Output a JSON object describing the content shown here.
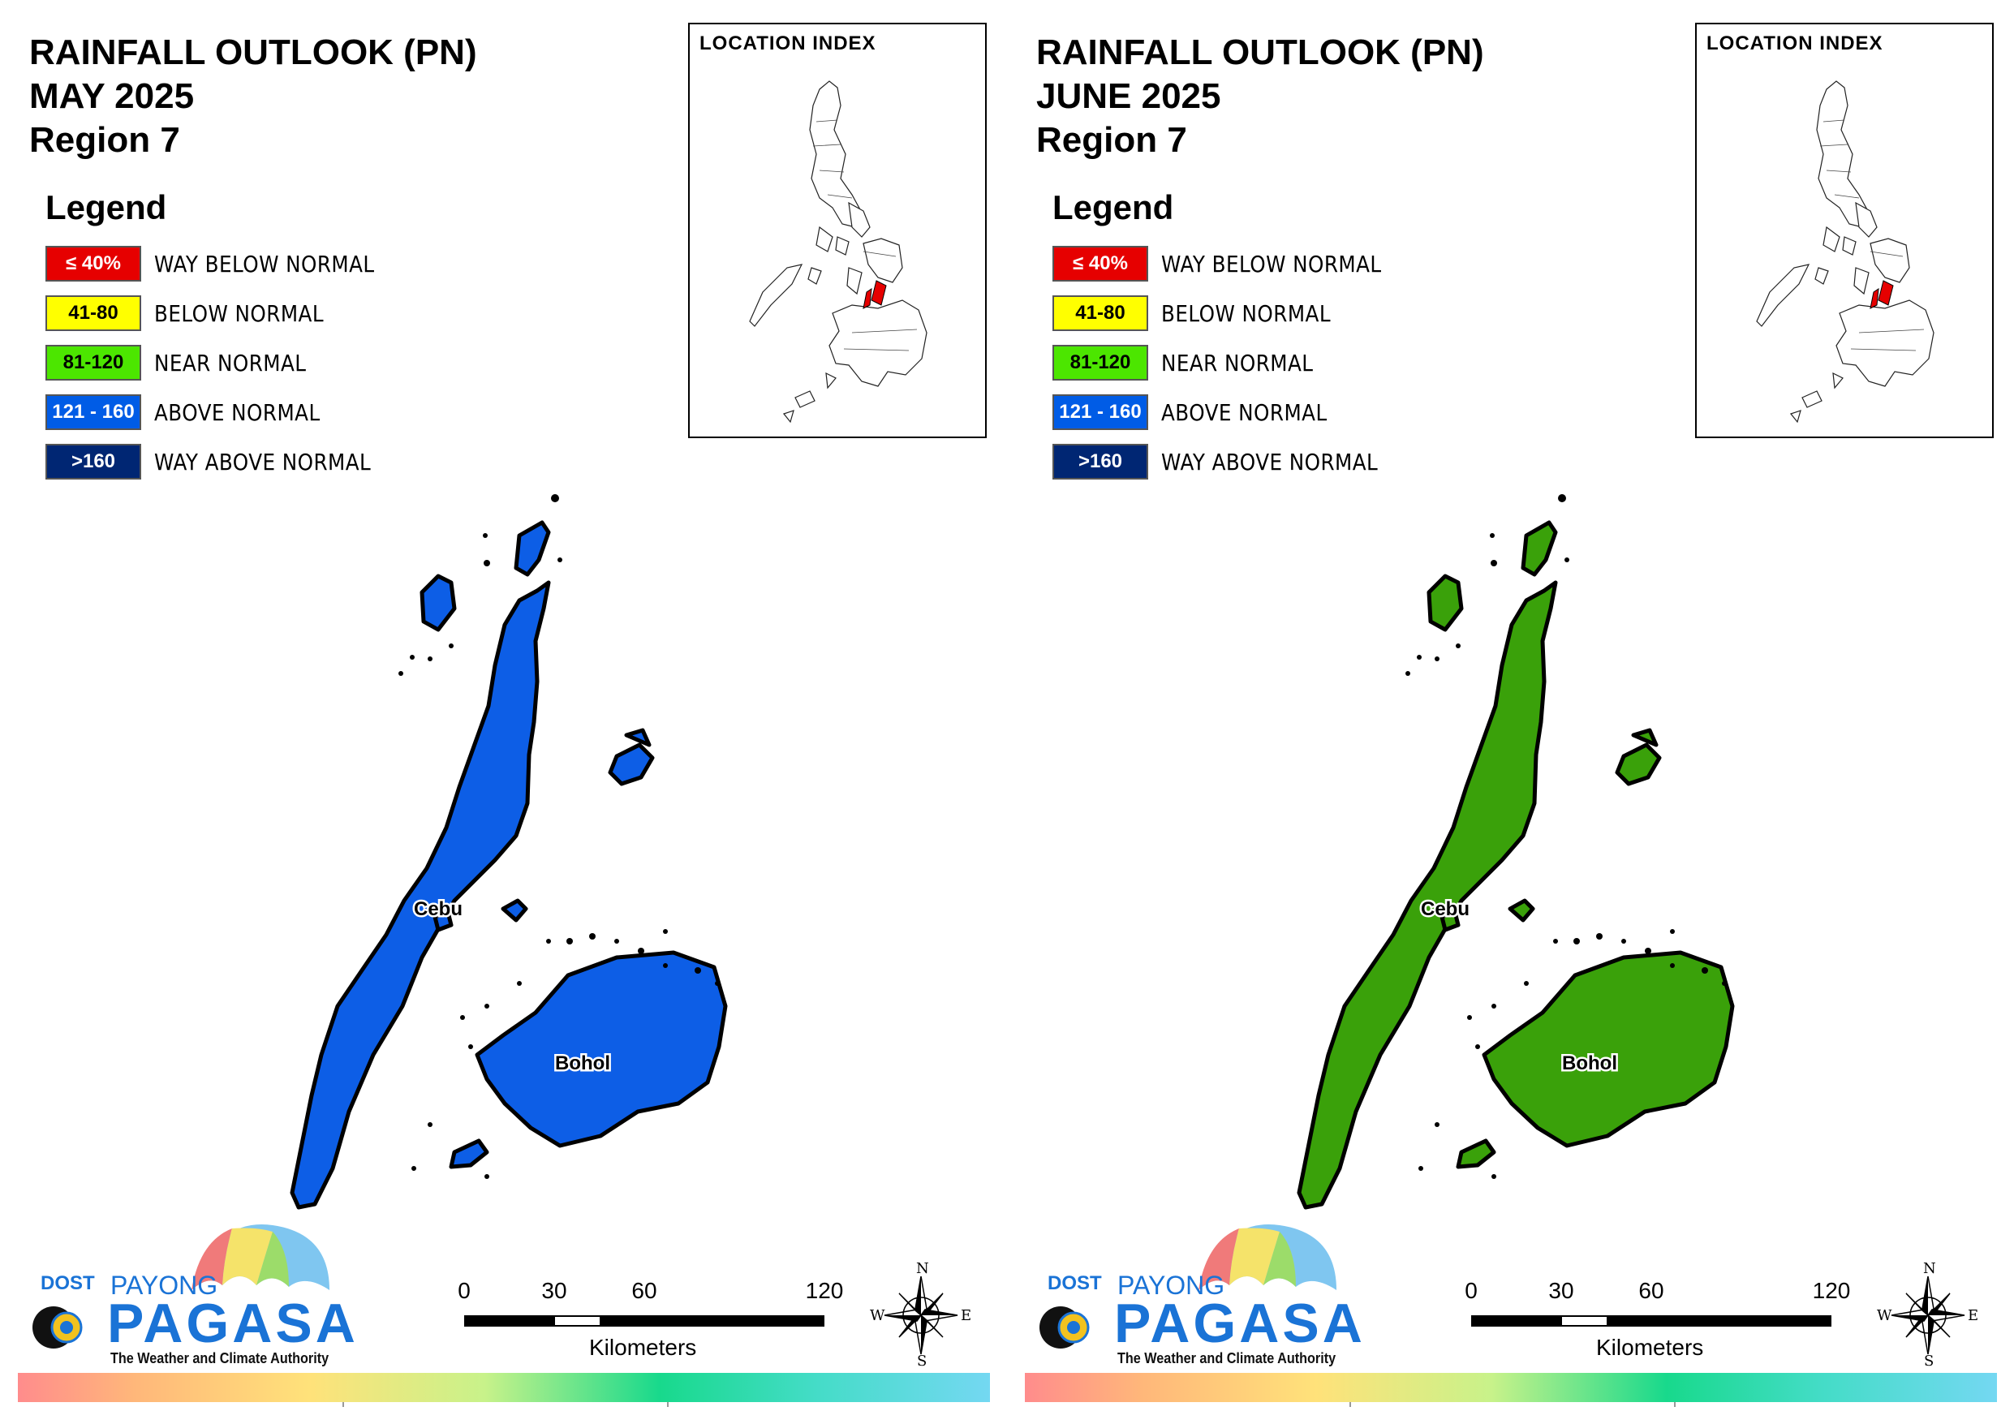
{
  "panels": [
    {
      "title_line1": "RAINFALL OUTLOOK (PN)",
      "title_line2": "MAY 2025",
      "title_line3": "Region 7",
      "province_color": "#0d5ee6",
      "map_labels": {
        "cebu": "Cebu",
        "bohol": "Bohol"
      }
    },
    {
      "title_line1": "RAINFALL OUTLOOK (PN)",
      "title_line2": "JUNE 2025",
      "title_line3": "Region 7",
      "province_color": "#3aa10a",
      "map_labels": {
        "cebu": "Cebu",
        "bohol": "Bohol"
      }
    }
  ],
  "legend": {
    "heading": "Legend",
    "items": [
      {
        "range": "≤ 40%",
        "label": "WAY BELOW NORMAL",
        "color": "#e60000",
        "text_color": "#ffffff"
      },
      {
        "range": "41-80",
        "label": "BELOW NORMAL",
        "color": "#ffff00",
        "text_color": "#000000"
      },
      {
        "range": "81-120",
        "label": "NEAR NORMAL",
        "color": "#4ce600",
        "text_color": "#000000"
      },
      {
        "range": "121 - 160",
        "label": "ABOVE NORMAL",
        "color": "#005ce6",
        "text_color": "#ffffff"
      },
      {
        "range": ">160",
        "label": "WAY ABOVE NORMAL",
        "color": "#002673",
        "text_color": "#ffffff"
      }
    ]
  },
  "location_index": {
    "title": "LOCATION INDEX",
    "highlight_color": "#e60000"
  },
  "scale_bar": {
    "ticks": [
      "0",
      "30",
      "60",
      "120"
    ],
    "tick_values": [
      0,
      30,
      60,
      120
    ],
    "units": "Kilometers"
  },
  "compass": {
    "n": "N",
    "e": "E",
    "s": "S",
    "w": "W"
  },
  "logo": {
    "dost": "DOST",
    "payong": "PAYONG",
    "pagasa": "PAGASA",
    "tagline": "The Weather and Climate Authority"
  }
}
